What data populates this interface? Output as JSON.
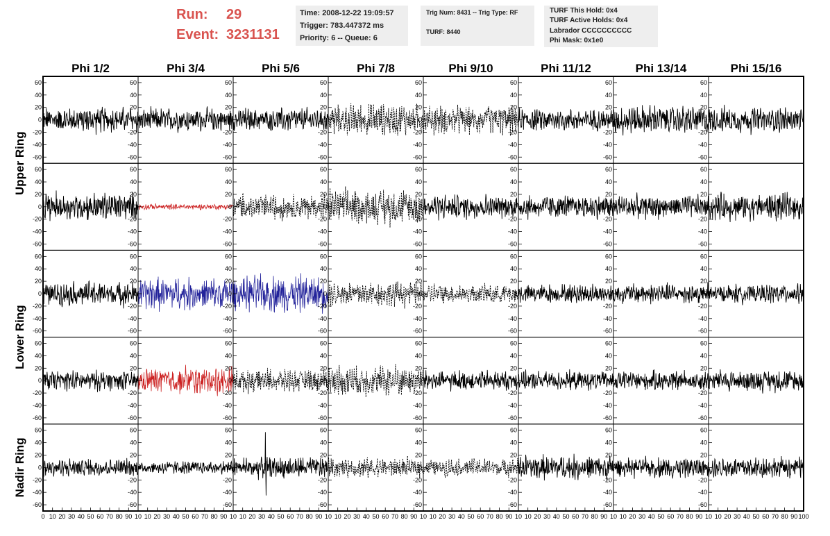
{
  "header": {
    "run_label": "Run:",
    "run_value": "29",
    "event_label": "Event:",
    "event_value": "3231131",
    "time": "Time: 2008-12-22 19:09:57",
    "trigger": "Trigger: 783.447372 ms",
    "priority": "Priority: 6 -- Queue: 6",
    "trig_num": "Trig Num: 8431 -- Trig Type: RF",
    "turf": "TURF: 8440",
    "turf_hold": "TURF This Hold: 0x4",
    "turf_active": "TURF Active Holds: 0x4",
    "labrador": "Labrador CCCCCCCCCC",
    "phi_mask": "Phi Mask: 0x1e0",
    "accent_color": "#d9534f"
  },
  "chart_data": {
    "type": "line",
    "columns": [
      "Phi 1/2",
      "Phi 3/4",
      "Phi 5/6",
      "Phi 7/8",
      "Phi 9/10",
      "Phi 11/12",
      "Phi 13/14",
      "Phi 15/16"
    ],
    "ring_labels": [
      {
        "text": "Upper Ring",
        "rows": [
          0,
          1
        ]
      },
      {
        "text": "Lower Ring",
        "rows": [
          2,
          3
        ]
      },
      {
        "text": "Nadir Ring",
        "rows": [
          4
        ]
      }
    ],
    "xlim": [
      0,
      100
    ],
    "ylim": [
      -70,
      70
    ],
    "yticks": [
      60,
      40,
      20,
      0,
      -20,
      -40,
      -60
    ],
    "xticks": [
      [
        "0",
        "10",
        "20",
        "30",
        "40",
        "50",
        "60",
        "70",
        "80",
        "90",
        "10"
      ],
      [
        "10",
        "20",
        "30",
        "40",
        "50",
        "60",
        "70",
        "80",
        "90",
        "10"
      ],
      [
        "10",
        "20",
        "30",
        "40",
        "50",
        "60",
        "70",
        "80",
        "90",
        "10"
      ],
      [
        "10",
        "20",
        "30",
        "40",
        "50",
        "60",
        "70",
        "80",
        "90",
        "10"
      ],
      [
        "10",
        "20",
        "30",
        "40",
        "50",
        "60",
        "70",
        "80",
        "90",
        "10"
      ],
      [
        "10",
        "20",
        "30",
        "40",
        "50",
        "60",
        "70",
        "80",
        "90",
        "10"
      ],
      [
        "10",
        "20",
        "30",
        "40",
        "50",
        "60",
        "70",
        "80",
        "90",
        "10"
      ],
      [
        "10",
        "20",
        "30",
        "40",
        "50",
        "60",
        "70",
        "80",
        "90",
        "100"
      ]
    ],
    "colors": {
      "normal": "#000000",
      "red": "#cc2222",
      "blue": "#22229a"
    },
    "grid": false,
    "panels": [
      [
        {
          "style": "solid",
          "color": "normal",
          "amp": 18
        },
        {
          "style": "solid",
          "color": "normal",
          "amp": 16
        },
        {
          "style": "solid",
          "color": "normal",
          "amp": 16
        },
        {
          "style": "dashed",
          "color": "normal",
          "amp": 22
        },
        {
          "style": "dashed",
          "color": "normal",
          "amp": 20
        },
        {
          "style": "solid",
          "color": "normal",
          "amp": 15
        },
        {
          "style": "solid",
          "color": "normal",
          "amp": 20
        },
        {
          "style": "solid",
          "color": "normal",
          "amp": 18
        }
      ],
      [
        {
          "style": "solid",
          "color": "normal",
          "amp": 20
        },
        {
          "style": "solid",
          "color": "red",
          "amp": 4
        },
        {
          "style": "dashed",
          "color": "normal",
          "amp": 18
        },
        {
          "style": "dashed",
          "color": "normal",
          "amp": 25
        },
        {
          "style": "solid",
          "color": "normal",
          "amp": 17
        },
        {
          "style": "solid",
          "color": "normal",
          "amp": 17
        },
        {
          "style": "solid",
          "color": "normal",
          "amp": 16
        },
        {
          "style": "solid",
          "color": "normal",
          "amp": 19
        }
      ],
      [
        {
          "style": "solid",
          "color": "normal",
          "amp": 17
        },
        {
          "style": "solid",
          "color": "blue",
          "amp": 22
        },
        {
          "style": "solid",
          "color": "blue",
          "amp": 26
        },
        {
          "style": "dashed",
          "color": "normal",
          "amp": 18
        },
        {
          "style": "dashed",
          "color": "normal",
          "amp": 14
        },
        {
          "style": "solid",
          "color": "normal",
          "amp": 13
        },
        {
          "style": "solid",
          "color": "normal",
          "amp": 14
        },
        {
          "style": "solid",
          "color": "normal",
          "amp": 13
        }
      ],
      [
        {
          "style": "solid",
          "color": "normal",
          "amp": 14
        },
        {
          "style": "solid",
          "color": "red",
          "amp": 20
        },
        {
          "style": "dashed",
          "color": "normal",
          "amp": 16
        },
        {
          "style": "dashed",
          "color": "normal",
          "amp": 22
        },
        {
          "style": "solid",
          "color": "normal",
          "amp": 14
        },
        {
          "style": "solid",
          "color": "normal",
          "amp": 13
        },
        {
          "style": "solid",
          "color": "normal",
          "amp": 14
        },
        {
          "style": "solid",
          "color": "normal",
          "amp": 15
        }
      ],
      [
        {
          "style": "solid",
          "color": "normal",
          "amp": 13
        },
        {
          "style": "solid",
          "color": "normal",
          "amp": 9
        },
        {
          "style": "solid",
          "color": "normal",
          "amp": 15
        },
        {
          "style": "dashed",
          "color": "normal",
          "amp": 14
        },
        {
          "style": "dashed",
          "color": "normal",
          "amp": 12
        },
        {
          "style": "solid",
          "color": "normal",
          "amp": 17
        },
        {
          "style": "solid",
          "color": "normal",
          "amp": 14
        },
        {
          "style": "solid",
          "color": "normal",
          "amp": 15
        }
      ]
    ]
  }
}
